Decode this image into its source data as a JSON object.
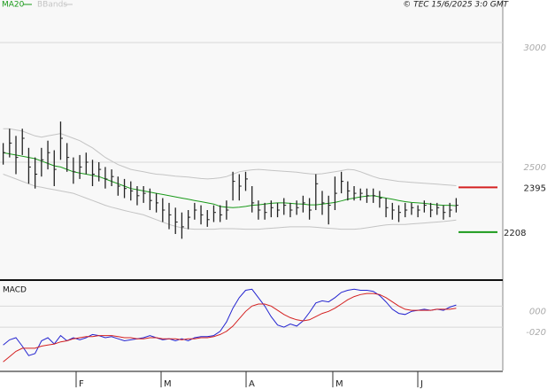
{
  "chart_data": [
    {
      "type": "hlc",
      "credit": "© TEC 15/6/2025 3:0 GMT",
      "ylim": [
        2011,
        3178
      ],
      "yticks": [
        3000,
        2500
      ],
      "xlim": [
        -0.5,
        78.3
      ],
      "grid": true,
      "bar_color": "#222222",
      "high": [
        2580,
        2640,
        2610,
        2640,
        2560,
        2520,
        2560,
        2590,
        2550,
        2670,
        2580,
        2520,
        2530,
        2540,
        2510,
        2500,
        2480,
        2470,
        2440,
        2430,
        2420,
        2400,
        2400,
        2390,
        2370,
        2350,
        2330,
        2310,
        2290,
        2300,
        2330,
        2320,
        2300,
        2320,
        2320,
        2340,
        2460,
        2450,
        2460,
        2400,
        2340,
        2330,
        2340,
        2330,
        2350,
        2330,
        2340,
        2360,
        2350,
        2450,
        2380,
        2360,
        2440,
        2460,
        2420,
        2400,
        2390,
        2390,
        2390,
        2380,
        2350,
        2330,
        2320,
        2330,
        2330,
        2320,
        2340,
        2330,
        2330,
        2320,
        2330,
        2350
      ],
      "low": [
        2490,
        2520,
        2450,
        2530,
        2410,
        2390,
        2440,
        2470,
        2400,
        2510,
        2460,
        2410,
        2430,
        2450,
        2400,
        2420,
        2390,
        2400,
        2360,
        2350,
        2340,
        2320,
        2330,
        2300,
        2290,
        2250,
        2220,
        2200,
        2180,
        2220,
        2260,
        2240,
        2230,
        2250,
        2250,
        2260,
        2340,
        2340,
        2380,
        2290,
        2260,
        2260,
        2270,
        2270,
        2280,
        2270,
        2280,
        2290,
        2260,
        2300,
        2280,
        2240,
        2300,
        2370,
        2340,
        2340,
        2340,
        2330,
        2330,
        2310,
        2270,
        2260,
        2250,
        2270,
        2280,
        2270,
        2290,
        2270,
        2280,
        2260,
        2270,
        2290
      ],
      "close": [
        2540,
        2580,
        2520,
        2600,
        2480,
        2450,
        2510,
        2540,
        2470,
        2600,
        2520,
        2460,
        2480,
        2500,
        2450,
        2470,
        2430,
        2440,
        2400,
        2390,
        2380,
        2360,
        2370,
        2340,
        2330,
        2300,
        2280,
        2250,
        2230,
        2270,
        2300,
        2280,
        2260,
        2290,
        2280,
        2300,
        2420,
        2400,
        2430,
        2330,
        2300,
        2290,
        2310,
        2300,
        2320,
        2300,
        2310,
        2330,
        2300,
        2410,
        2330,
        2320,
        2370,
        2420,
        2380,
        2370,
        2370,
        2360,
        2360,
        2350,
        2310,
        2300,
        2290,
        2300,
        2310,
        2300,
        2320,
        2300,
        2310,
        2290,
        2300,
        2320
      ],
      "series": [
        {
          "name": "MA20",
          "color": "#1a9a1a",
          "values": [
            2540,
            2535,
            2530,
            2525,
            2520,
            2515,
            2505,
            2495,
            2485,
            2480,
            2470,
            2460,
            2455,
            2450,
            2445,
            2440,
            2430,
            2420,
            2410,
            2400,
            2390,
            2385,
            2380,
            2375,
            2370,
            2365,
            2360,
            2355,
            2350,
            2345,
            2340,
            2335,
            2330,
            2325,
            2315,
            2312,
            2310,
            2312,
            2315,
            2320,
            2322,
            2325,
            2328,
            2330,
            2330,
            2328,
            2326,
            2325,
            2322,
            2322,
            2325,
            2328,
            2332,
            2338,
            2345,
            2350,
            2355,
            2358,
            2360,
            2355,
            2350,
            2345,
            2340,
            2335,
            2332,
            2330,
            2328,
            2325,
            2322,
            2320,
            2320,
            2318
          ]
        },
        {
          "name": "BBands",
          "color": "#c4c4c4",
          "upper": [
            2640,
            2640,
            2635,
            2630,
            2620,
            2610,
            2605,
            2610,
            2615,
            2620,
            2610,
            2600,
            2590,
            2575,
            2560,
            2540,
            2520,
            2505,
            2490,
            2480,
            2470,
            2465,
            2460,
            2455,
            2450,
            2448,
            2445,
            2442,
            2440,
            2438,
            2435,
            2432,
            2430,
            2432,
            2435,
            2440,
            2450,
            2460,
            2465,
            2468,
            2470,
            2468,
            2466,
            2464,
            2462,
            2460,
            2458,
            2455,
            2452,
            2450,
            2452,
            2456,
            2460,
            2465,
            2470,
            2468,
            2460,
            2450,
            2440,
            2432,
            2428,
            2424,
            2420,
            2418,
            2416,
            2414,
            2412,
            2410,
            2408,
            2406,
            2404,
            2402
          ],
          "lower": [
            2450,
            2440,
            2430,
            2420,
            2410,
            2400,
            2395,
            2390,
            2385,
            2380,
            2375,
            2370,
            2360,
            2350,
            2340,
            2330,
            2320,
            2312,
            2305,
            2298,
            2292,
            2286,
            2280,
            2270,
            2260,
            2250,
            2240,
            2232,
            2226,
            2222,
            2220,
            2220,
            2220,
            2220,
            2222,
            2222,
            2222,
            2221,
            2220,
            2220,
            2220,
            2222,
            2224,
            2226,
            2228,
            2230,
            2230,
            2230,
            2230,
            2228,
            2226,
            2224,
            2222,
            2220,
            2220,
            2220,
            2222,
            2226,
            2230,
            2234,
            2238,
            2240,
            2240,
            2240,
            2242,
            2244,
            2246,
            2248,
            2250,
            2252,
            2255,
            2258
          ]
        }
      ],
      "annotations": [
        {
          "value": 2395,
          "color": "#d42020"
        },
        {
          "value": 2208,
          "color": "#1a9a1a"
        }
      ]
    },
    {
      "type": "line",
      "title": "MACD",
      "ylim": [
        -62,
        23
      ],
      "yticks": [
        {
          "value": 0,
          "label": "000"
        },
        {
          "value": -20,
          "label": "-020"
        }
      ],
      "xlim": [
        -0.5,
        78.3
      ],
      "xticks": [
        {
          "value": 11.43,
          "label": "F"
        },
        {
          "value": 24.75,
          "label": "M"
        },
        {
          "value": 38.07,
          "label": "A"
        },
        {
          "value": 51.66,
          "label": "M"
        },
        {
          "value": 64.98,
          "label": "J"
        }
      ],
      "grid": true,
      "series": [
        {
          "color": "#2424d0",
          "values": [
            -37,
            -32,
            -30,
            -38,
            -47,
            -45,
            -33,
            -30,
            -36,
            -28,
            -33,
            -30,
            -32,
            -30,
            -27,
            -28,
            -30,
            -29,
            -31,
            -33,
            -32,
            -31,
            -30,
            -28,
            -30,
            -32,
            -31,
            -33,
            -31,
            -33,
            -30,
            -29,
            -29,
            -28,
            -24,
            -15,
            -2,
            8,
            15,
            16,
            8,
            0,
            -10,
            -18,
            -20,
            -17,
            -19,
            -14,
            -6,
            3,
            5,
            4,
            8,
            13,
            15,
            16,
            15,
            15,
            14,
            10,
            4,
            -3,
            -7,
            -8,
            -5,
            -4,
            -3,
            -4,
            -3,
            -4,
            -1,
            1
          ]
        },
        {
          "color": "#d42020",
          "values": [
            -53,
            -48,
            -43,
            -40,
            -40,
            -40,
            -38,
            -37,
            -36,
            -34,
            -33,
            -31,
            -30,
            -29,
            -29,
            -28,
            -28,
            -28,
            -29,
            -30,
            -30,
            -31,
            -31,
            -30,
            -30,
            -31,
            -31,
            -31,
            -32,
            -31,
            -31,
            -30,
            -30,
            -29,
            -27,
            -24,
            -19,
            -12,
            -5,
            0,
            2,
            2,
            0,
            -4,
            -8,
            -11,
            -13,
            -14,
            -13,
            -10,
            -7,
            -5,
            -2,
            2,
            6,
            9,
            11,
            12,
            12,
            11,
            8,
            4,
            0,
            -3,
            -4,
            -4,
            -4,
            -4,
            -3,
            -3,
            -3,
            -2
          ]
        }
      ]
    }
  ]
}
